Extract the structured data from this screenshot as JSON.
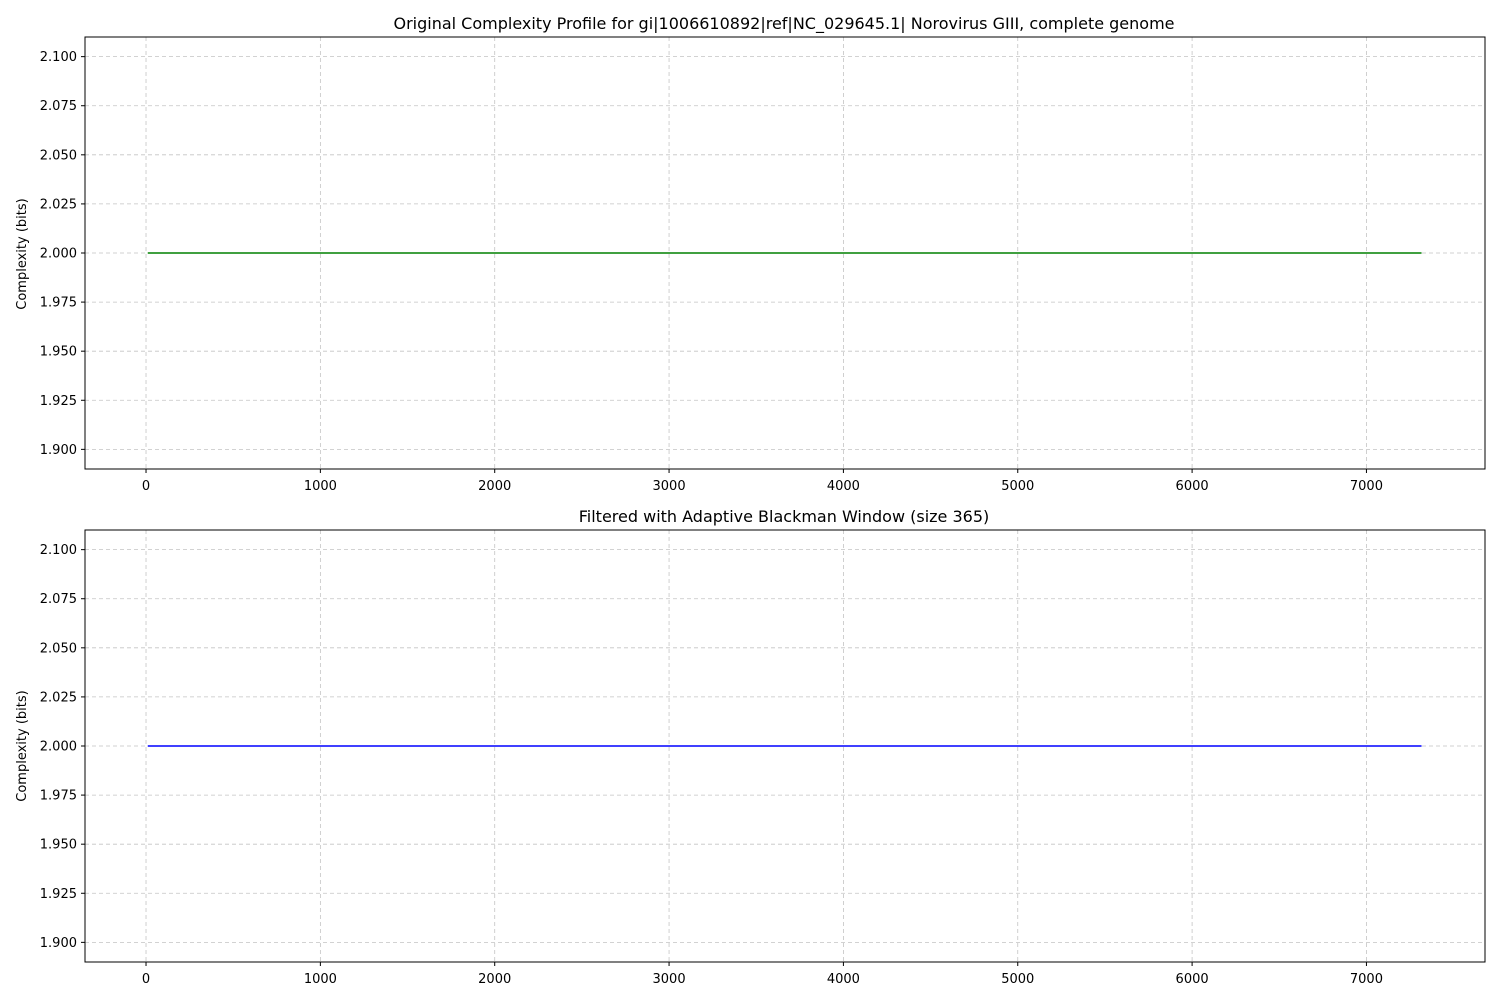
{
  "chart_data": [
    {
      "type": "line",
      "title": "Original Complexity Profile for gi|1006610892|ref|NC_029645.1| Norovirus GIII, complete genome",
      "xlabel": "",
      "ylabel": "Complexity (bits)",
      "xlim": [
        -350,
        7680
      ],
      "ylim": [
        1.89,
        2.11
      ],
      "x_ticks": [
        0,
        1000,
        2000,
        3000,
        4000,
        5000,
        6000,
        7000
      ],
      "y_ticks": [
        "1.900",
        "1.925",
        "1.950",
        "1.975",
        "2.000",
        "2.025",
        "2.050",
        "2.075",
        "2.100"
      ],
      "grid": true,
      "series": [
        {
          "color": "#008000",
          "x": [
            10,
            7316
          ],
          "y": [
            2.0,
            2.0
          ]
        }
      ]
    },
    {
      "type": "line",
      "title": "Filtered with Adaptive Blackman Window (size 365)",
      "xlabel": "",
      "ylabel": "Complexity (bits)",
      "xlim": [
        -350,
        7680
      ],
      "ylim": [
        1.89,
        2.11
      ],
      "x_ticks": [
        0,
        1000,
        2000,
        3000,
        4000,
        5000,
        6000,
        7000
      ],
      "y_ticks": [
        "1.900",
        "1.925",
        "1.950",
        "1.975",
        "2.000",
        "2.025",
        "2.050",
        "2.075",
        "2.100"
      ],
      "grid": true,
      "series": [
        {
          "color": "#0000ff",
          "x": [
            10,
            7316
          ],
          "y": [
            2.0,
            2.0
          ]
        }
      ]
    }
  ]
}
